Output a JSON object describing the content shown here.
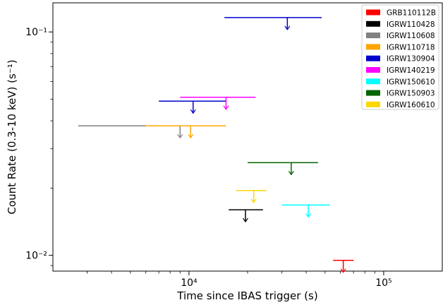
{
  "chart_data": {
    "type": "scatter",
    "title": "",
    "xlabel": "Time since IBAS trigger (s)",
    "ylabel": "Count Rate (0.3-10 keV) (s⁻¹)",
    "xscale": "log",
    "yscale": "log",
    "xlim": [
      2000,
      200000
    ],
    "ylim": [
      0.0085,
      0.135
    ],
    "x_ticks": [
      10000,
      100000
    ],
    "x_tick_labels": [
      "10⁴",
      "10⁵"
    ],
    "y_ticks": [
      0.01,
      0.1
    ],
    "y_tick_labels": [
      "10⁻²",
      "10⁻¹"
    ],
    "grid": false,
    "legend_position": "top-right",
    "marker": "upper-limit",
    "series": [
      {
        "name": "GRB110112B",
        "color": "#ff0000",
        "x": 62000,
        "x_range": [
          55000,
          70000
        ],
        "y": 0.0095
      },
      {
        "name": "IGRW110428",
        "color": "#000000",
        "x": 19500,
        "x_range": [
          16000,
          24000
        ],
        "y": 0.016
      },
      {
        "name": "IGRW110608",
        "color": "#808080",
        "x": 9000,
        "x_range": [
          2700,
          15000
        ],
        "y": 0.038
      },
      {
        "name": "IGRW110718",
        "color": "#ffa500",
        "x": 10200,
        "x_range": [
          6000,
          15500
        ],
        "y": 0.038
      },
      {
        "name": "IGRW130904",
        "color": "#0000cc",
        "x": 10500,
        "x_range": [
          7000,
          15500
        ],
        "y": 0.049
      },
      {
        "name": "IGRW130904",
        "color": "#0000cc",
        "x": 32000,
        "x_range": [
          15200,
          48000
        ],
        "y": 0.116,
        "legend": false
      },
      {
        "name": "IGRW140219",
        "color": "#ff00ff",
        "x": 15500,
        "x_range": [
          9000,
          22000
        ],
        "y": 0.051
      },
      {
        "name": "IGRW150610",
        "color": "#00ffff",
        "x": 41000,
        "x_range": [
          30000,
          53000
        ],
        "y": 0.0168
      },
      {
        "name": "IGRW150903",
        "color": "#006400",
        "x": 33500,
        "x_range": [
          20000,
          46000
        ],
        "y": 0.026
      },
      {
        "name": "IGRW160610",
        "color": "#ffd700",
        "x": 21500,
        "x_range": [
          17500,
          25000
        ],
        "y": 0.0195
      }
    ]
  }
}
